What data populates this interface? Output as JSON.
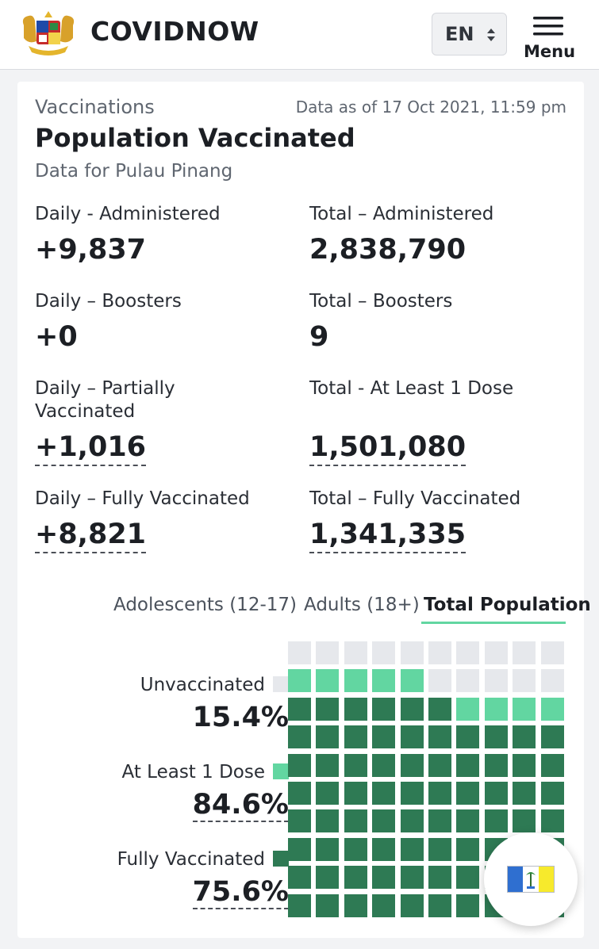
{
  "header": {
    "brand": "COVIDNOW",
    "language": "EN",
    "menu_label": "Menu"
  },
  "card": {
    "section": "Vaccinations",
    "date": "Data as of 17 Oct 2021, 11:59 pm",
    "title": "Population Vaccinated",
    "subtitle": "Data for Pulau Pinang"
  },
  "stats": [
    {
      "label": "Daily - Administered",
      "value": "+9,837"
    },
    {
      "label": "Total – Administered",
      "value": "2,838,790"
    },
    {
      "label": "Daily – Boosters",
      "value": "+0"
    },
    {
      "label": "Total – Boosters",
      "value": "9"
    },
    {
      "label": "Daily – Partially Vaccinated",
      "value": "+1,016"
    },
    {
      "label": "Total - At Least 1 Dose",
      "value": "1,501,080"
    },
    {
      "label": "Daily – Fully Vaccinated",
      "value": "+8,821"
    },
    {
      "label": "Total – Fully Vaccinated",
      "value": "1,341,335"
    }
  ],
  "tabs": [
    {
      "label": "Adolescents (12-17)",
      "active": false
    },
    {
      "label": "Adults (18+)",
      "active": false
    },
    {
      "label": "Total Population",
      "active": true
    }
  ],
  "legend": [
    {
      "label": "Unvaccinated",
      "value": "15.4%",
      "color": "#e6e8ec"
    },
    {
      "label": "At Least 1 Dose",
      "value": "84.6%",
      "color": "#62d6a1"
    },
    {
      "label": "Fully Vaccinated",
      "value": "75.6%",
      "color": "#2e7a54"
    }
  ],
  "waffle": {
    "fully_vaccinated_pct": 75.6,
    "partial_pct": 9.0,
    "unvaccinated_pct": 15.4
  },
  "icons": {
    "logo": "malaysia-coat-of-arms-icon",
    "menu": "hamburger-menu-icon",
    "state": "penang-flag-icon"
  }
}
